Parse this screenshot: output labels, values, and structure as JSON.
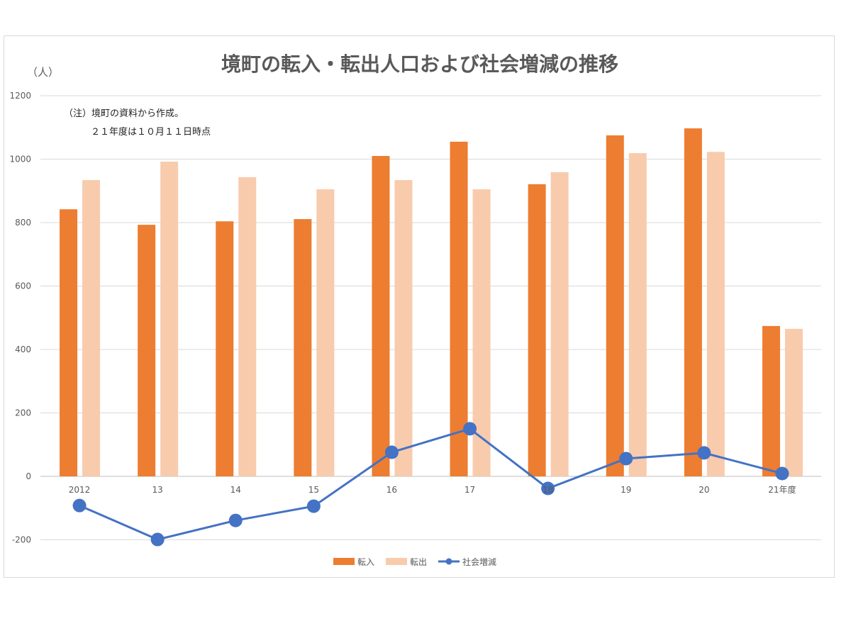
{
  "chart_data": {
    "type": "bar",
    "title": "境町の転入・転出人口および社会増減の推移",
    "ylabel": "（人）",
    "ylim": [
      -200,
      1200
    ],
    "yticks": [
      -200,
      0,
      200,
      400,
      600,
      800,
      1000,
      1200
    ],
    "ytick_labels": [
      "-200",
      "0",
      "200",
      "400",
      "600",
      "800",
      "1000",
      "1200"
    ],
    "grid": true,
    "categories": [
      "2012",
      "13",
      "14",
      "15",
      "16",
      "17",
      "18",
      "19",
      "20",
      "21年度"
    ],
    "series": [
      {
        "name": "転入",
        "type": "bar",
        "color": "#ED7D31",
        "values": [
          842,
          793,
          804,
          811,
          1010,
          1055,
          921,
          1075,
          1097,
          474
        ]
      },
      {
        "name": "転出",
        "type": "bar",
        "color": "#F8CBAD",
        "values": [
          934,
          992,
          943,
          905,
          934,
          905,
          959,
          1019,
          1023,
          465
        ]
      },
      {
        "name": "社会増減",
        "type": "line",
        "color": "#4472C4",
        "values": [
          -92,
          -199,
          -139,
          -94,
          76,
          150,
          -38,
          56,
          74,
          9
        ]
      }
    ],
    "annotations": [
      "（注）境町の資料から作成。",
      "２１年度は１０月１１日時点"
    ],
    "legend_position": "bottom"
  }
}
